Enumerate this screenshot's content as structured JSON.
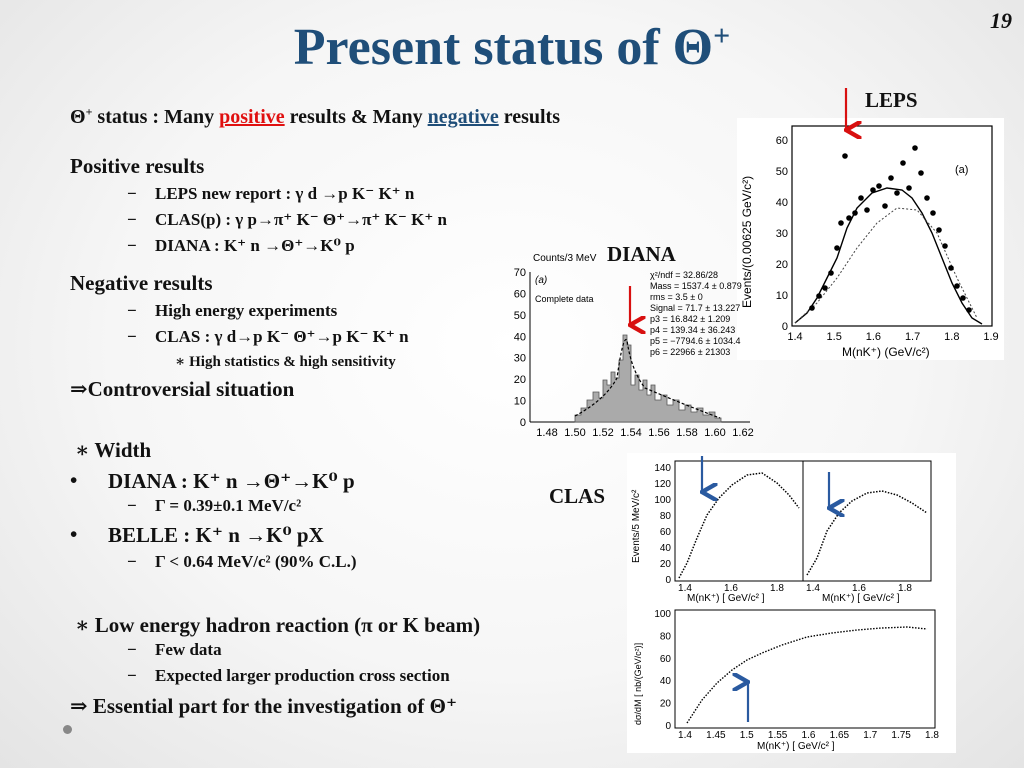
{
  "page_number": "19",
  "title": {
    "text": "Present status of Θ",
    "sup": "+"
  },
  "status_line": {
    "theta": "Θ",
    "theta_sup": "+",
    "prefix": " status : Many ",
    "positive": "positive",
    "middle": " results & Many ",
    "negative": "negative",
    "suffix": " results"
  },
  "positive": {
    "heading": "Positive results",
    "items": [
      "LEPS new report : γ d →p K⁻ K⁺ n",
      "CLAS(p) : γ p→π⁺ K⁻ Θ⁺→π⁺ K⁻ K⁺ n",
      "DIANA : K⁺ n →Θ⁺→K⁰ p"
    ]
  },
  "negative": {
    "heading": "Negative results",
    "items": [
      "High energy experiments",
      "CLAS : γ d→p K⁻ Θ⁺→p K⁻ K⁺ n"
    ],
    "subnote": "∗ High statistics & high sensitivity"
  },
  "controversial": "⇒Controversial situation",
  "width": {
    "heading": "∗ Width",
    "diana": "DIANA : K⁺ n →Θ⁺→K⁰ p",
    "diana_gamma": "Γ = 0.39±0.1 MeV/c²",
    "belle": "BELLE : K⁺ n →K⁰ pX",
    "belle_gamma": "Γ < 0.64 MeV/c² (90% C.L.)"
  },
  "low_energy": {
    "heading": "∗ Low energy hadron reaction (π or K beam)",
    "items": [
      "Few data",
      "Expected larger production cross section"
    ],
    "conclusion": "⇒ Essential part for the investigation of  Θ⁺"
  },
  "labels": {
    "leps": "LEPS",
    "diana": "DIANA",
    "clas": "CLAS"
  },
  "leps_plot": {
    "ylabel": "Events/(0.00625 GeV/c²)",
    "xlabel": "M(nK⁺) (GeV/c²)",
    "panel": "(a)",
    "yticks": [
      "0",
      "10",
      "20",
      "30",
      "40",
      "50",
      "60"
    ],
    "xticks": [
      "1.4",
      "1.5",
      "1.6",
      "1.7",
      "1.8",
      "1.9"
    ]
  },
  "diana_plot": {
    "ylabel": "Counts/3 MeV",
    "panel": "(a)",
    "subtitle": "Complete data",
    "stats": [
      "χ²/ndf = 32.86/28",
      "Mass = 1537.4 ± 0.879",
      "rms = 3.5 ± 0",
      "Signal = 71.7 ± 13.227",
      "p3 = 16.842 ± 1.209",
      "p4 = 139.34 ± 36.243",
      "p5 = −7794.6 ± 1034.4",
      "p6 = 22966 ± 21303"
    ],
    "yticks": [
      "0",
      "10",
      "20",
      "30",
      "40",
      "50",
      "60",
      "70"
    ],
    "xticks": [
      "1.48",
      "1.50",
      "1.52",
      "1.54",
      "1.56",
      "1.58",
      "1.60",
      "1.62"
    ]
  },
  "clas_plot_top": {
    "ylabel": "Events/5 MeV/c²",
    "xlabel": "M(nK⁺) [ GeV/c² ]",
    "yticks": [
      "0",
      "20",
      "40",
      "60",
      "80",
      "100",
      "120",
      "140"
    ],
    "xticks": [
      "1.4",
      "1.6",
      "1.8"
    ]
  },
  "clas_plot_bottom": {
    "ylabel": "dσ/dM [ nb/(GeV/c²)]",
    "xlabel": "M(nK⁺) [ GeV/c² ]",
    "yticks": [
      "0",
      "20",
      "40",
      "60",
      "80",
      "100"
    ],
    "xticks": [
      "1.4",
      "1.45",
      "1.5",
      "1.55",
      "1.6",
      "1.65",
      "1.7",
      "1.75",
      "1.8"
    ]
  },
  "colors": {
    "title": "#1f4e79",
    "positive": "#e01010",
    "negative": "#1f4e79",
    "arrow_red": "#d81010",
    "arrow_blue": "#2a5aa0"
  }
}
